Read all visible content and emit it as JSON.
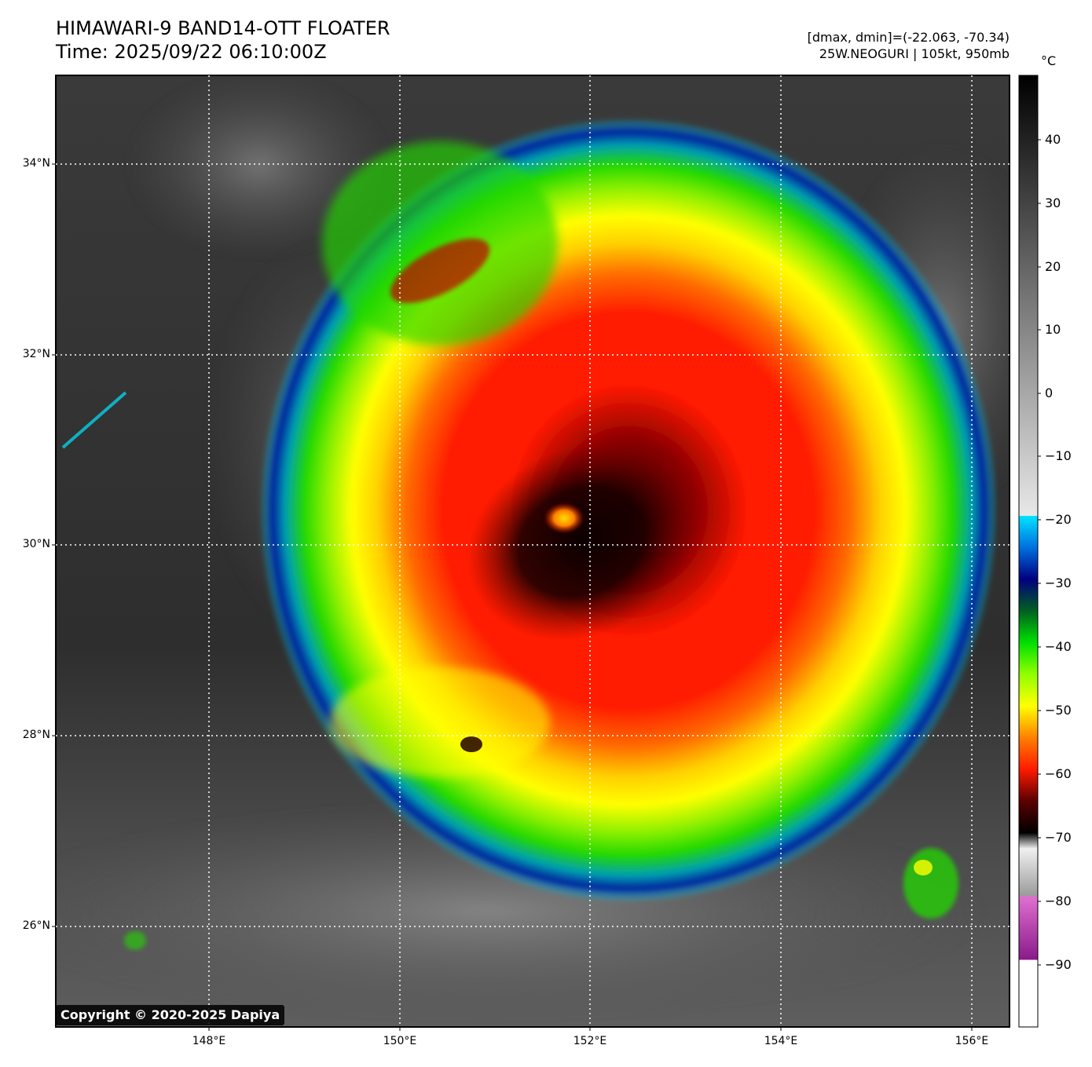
{
  "header": {
    "title_line1": "HIMAWARI-9 BAND14-OTT FLOATER",
    "title_line2": "Time: 2025/09/22 06:10:00Z",
    "range_text": "[dmax, dmin]=(-22.063, -70.34)",
    "storm_text": "25W.NEOGURI | 105kt, 950mb"
  },
  "map": {
    "lat_labels": [
      "34°N",
      "32°N",
      "30°N",
      "28°N",
      "26°N"
    ],
    "lon_labels": [
      "148°E",
      "150°E",
      "152°E",
      "154°E",
      "156°E"
    ],
    "storm_center": {
      "lat": 30.1,
      "lon": 151.8
    },
    "copyright": "Copyright © 2020-2025 Dapiya"
  },
  "colorbar": {
    "unit": "°C",
    "ticks": [
      "40",
      "30",
      "20",
      "10",
      "0",
      "−10",
      "−20",
      "−30",
      "−40",
      "−50",
      "−60",
      "−70",
      "−80",
      "−90"
    ],
    "colors": {
      "cyan": "#00e5ff",
      "blue": "#00209f",
      "green": "#22e000",
      "yellow": "#ffff00",
      "orange": "#ff8000",
      "red": "#ff1a00",
      "dark_red": "#5a0000",
      "magenta": "#c040c0"
    }
  }
}
